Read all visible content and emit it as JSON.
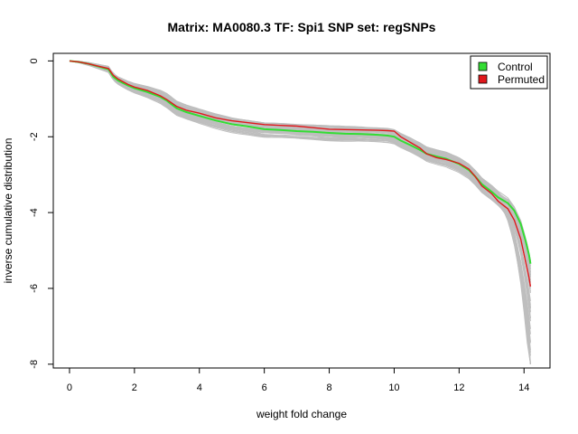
{
  "chart_data": {
    "type": "line",
    "title": "Matrix: MA0080.3 TF: Spi1 SNP set: regSNPs",
    "xlabel": "weight fold change",
    "ylabel": "inverse cumulative distribution",
    "xlim": [
      -0.5,
      14.8
    ],
    "ylim": [
      -8.1,
      0.2
    ],
    "xticks": [
      0,
      2,
      4,
      6,
      8,
      10,
      12,
      14
    ],
    "yticks": [
      0,
      -2,
      -4,
      -6,
      -8
    ],
    "grid": false,
    "legend": "top-right",
    "background_color": "#bebebe",
    "background_count": 50,
    "series": [
      {
        "name": "Control",
        "color": "#33dd33",
        "x": [
          0,
          0.3,
          0.6,
          0.9,
          1.2,
          1.35,
          1.5,
          1.8,
          2.0,
          2.4,
          2.8,
          3.0,
          3.3,
          3.6,
          4.0,
          4.5,
          5.0,
          5.5,
          6.0,
          6.5,
          7.0,
          7.5,
          8.0,
          8.5,
          9.0,
          9.5,
          9.8,
          10.0,
          10.2,
          10.5,
          10.8,
          11.0,
          11.3,
          11.6,
          12.0,
          12.3,
          12.5,
          12.7,
          13.0,
          13.2,
          13.5,
          13.7,
          13.9,
          14.05,
          14.15,
          14.2
        ],
        "y": [
          0,
          -0.03,
          -0.08,
          -0.15,
          -0.22,
          -0.42,
          -0.52,
          -0.65,
          -0.72,
          -0.82,
          -0.95,
          -1.05,
          -1.25,
          -1.35,
          -1.45,
          -1.57,
          -1.67,
          -1.73,
          -1.8,
          -1.82,
          -1.85,
          -1.87,
          -1.9,
          -1.92,
          -1.93,
          -1.95,
          -1.97,
          -2.0,
          -2.1,
          -2.22,
          -2.35,
          -2.45,
          -2.52,
          -2.58,
          -2.72,
          -2.88,
          -3.05,
          -3.25,
          -3.45,
          -3.6,
          -3.75,
          -3.95,
          -4.3,
          -4.75,
          -5.1,
          -5.35
        ]
      },
      {
        "name": "Permuted",
        "color": "#e0181c",
        "x": [
          0,
          0.3,
          0.6,
          0.9,
          1.2,
          1.35,
          1.5,
          1.8,
          2.0,
          2.4,
          2.8,
          3.0,
          3.3,
          3.6,
          4.0,
          4.5,
          5.0,
          5.5,
          6.0,
          6.5,
          7.0,
          7.5,
          8.0,
          8.5,
          9.0,
          9.5,
          9.8,
          10.0,
          10.2,
          10.5,
          10.8,
          11.0,
          11.3,
          11.6,
          12.0,
          12.3,
          12.5,
          12.7,
          13.0,
          13.2,
          13.5,
          13.7,
          13.9,
          14.05,
          14.15,
          14.2
        ],
        "y": [
          0,
          -0.03,
          -0.08,
          -0.14,
          -0.2,
          -0.38,
          -0.48,
          -0.62,
          -0.69,
          -0.78,
          -0.92,
          -1.02,
          -1.2,
          -1.3,
          -1.38,
          -1.5,
          -1.58,
          -1.63,
          -1.68,
          -1.7,
          -1.72,
          -1.76,
          -1.8,
          -1.81,
          -1.82,
          -1.83,
          -1.84,
          -1.85,
          -2.0,
          -2.15,
          -2.3,
          -2.45,
          -2.55,
          -2.6,
          -2.7,
          -2.85,
          -3.05,
          -3.3,
          -3.5,
          -3.7,
          -3.9,
          -4.2,
          -4.7,
          -5.3,
          -5.7,
          -5.95
        ]
      }
    ]
  }
}
